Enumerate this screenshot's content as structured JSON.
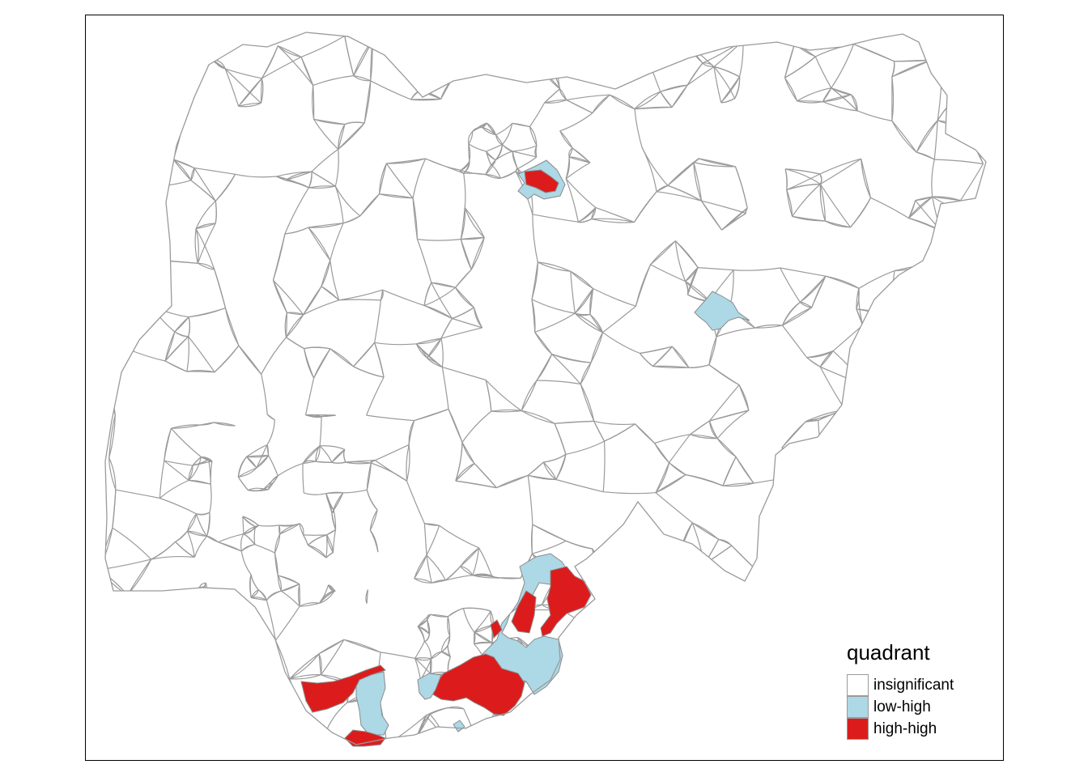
{
  "legend": {
    "title": "quadrant",
    "items": [
      {
        "label": "insignificant",
        "color": "#ffffff"
      },
      {
        "label": "low-high",
        "color": "#add8e6"
      },
      {
        "label": "high-high",
        "color": "#dc1c1c"
      }
    ]
  },
  "map": {
    "boundary_color": "#9a9a9a",
    "regions": [
      {
        "name": "kano-low-high-cluster",
        "quadrant": "low-high"
      },
      {
        "name": "kano-high-high-cluster",
        "quadrant": "high-high"
      },
      {
        "name": "gombe-bauchi-low-high",
        "quadrant": "low-high"
      },
      {
        "name": "cross-river-low-high",
        "quadrant": "low-high"
      },
      {
        "name": "cross-river-high-high",
        "quadrant": "high-high"
      },
      {
        "name": "akwa-ibom-high-high",
        "quadrant": "high-high"
      },
      {
        "name": "rivers-low-high",
        "quadrant": "low-high"
      },
      {
        "name": "delta-west-high-high",
        "quadrant": "high-high"
      },
      {
        "name": "bayelsa-low-high",
        "quadrant": "low-high"
      },
      {
        "name": "bayelsa-south-high-high",
        "quadrant": "high-high"
      }
    ]
  }
}
